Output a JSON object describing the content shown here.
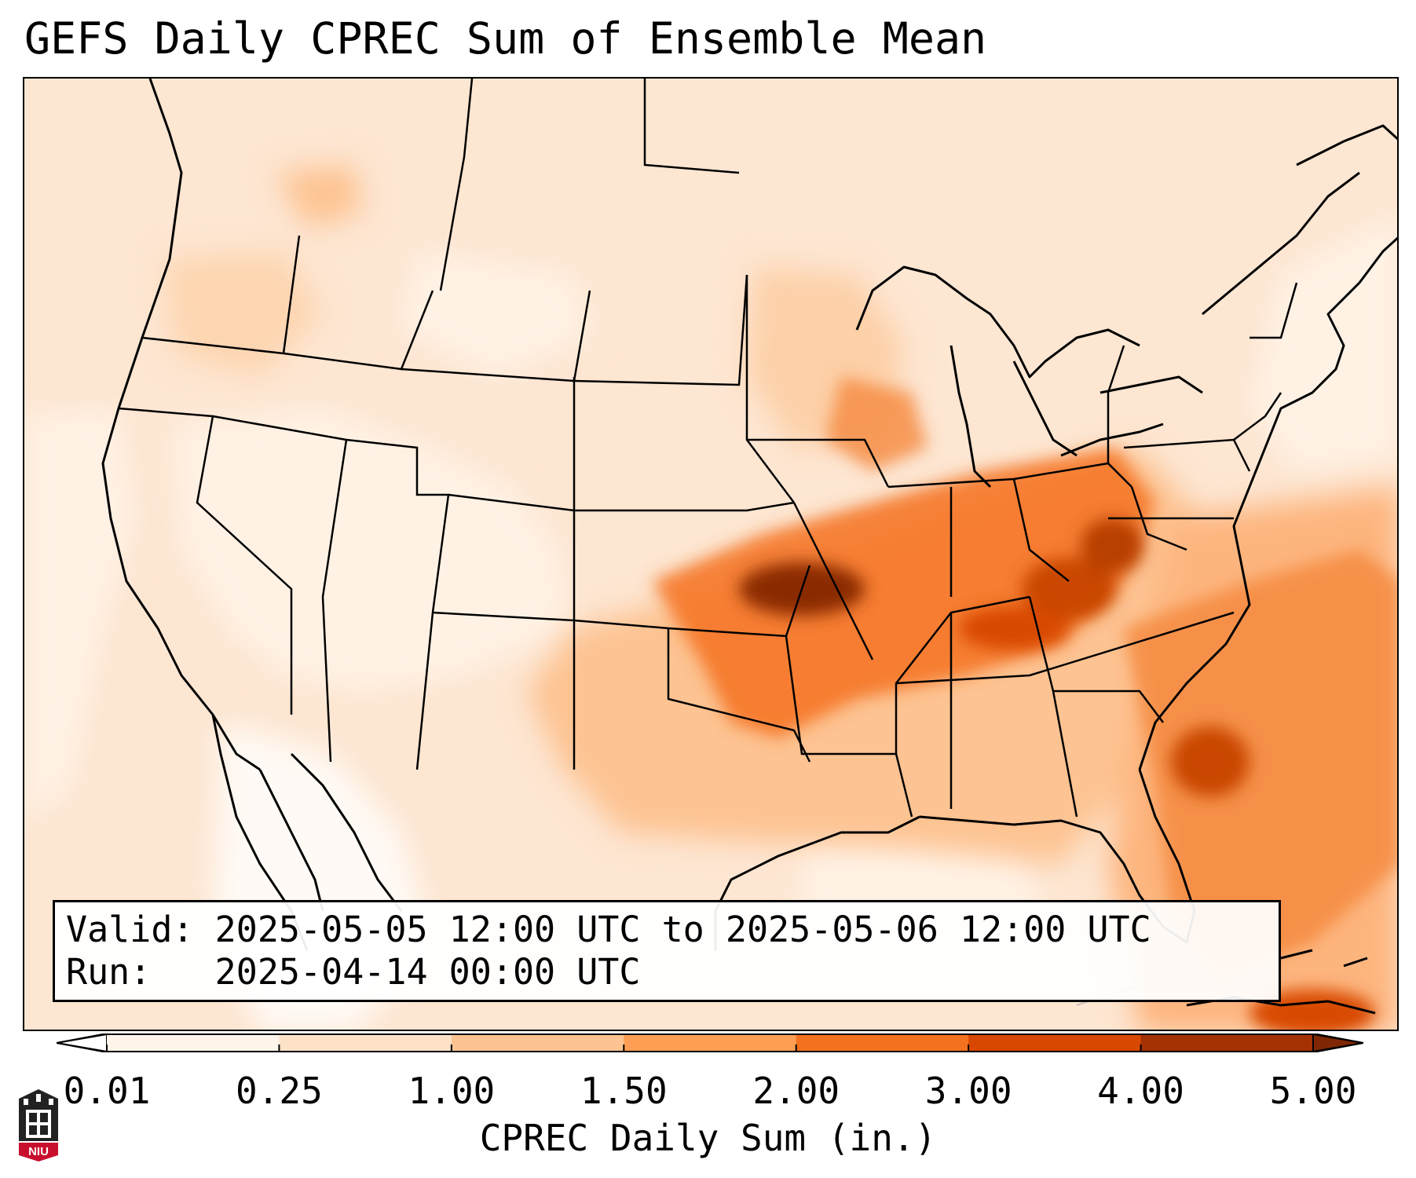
{
  "title": "GEFS Daily CPREC Sum of Ensemble Mean",
  "info": {
    "valid_line": "Valid: 2025-05-05 12:00 UTC to 2025-05-06 12:00 UTC",
    "run_line": "Run:   2025-04-14 00:00 UTC"
  },
  "colorbar": {
    "label": "CPREC Daily Sum (in.)",
    "ticks": [
      "0.01",
      "0.25",
      "1.00",
      "1.50",
      "2.00",
      "3.00",
      "4.00",
      "5.00"
    ],
    "colors": [
      "#fff5eb",
      "#fde2c8",
      "#fdc392",
      "#fd9e54",
      "#f4711f",
      "#d84801",
      "#a33103",
      "#7f2704"
    ],
    "under_color": "#ffffff",
    "over_color": "#7f2704"
  },
  "logo": {
    "text": "NIU",
    "icon": "university-tower-icon",
    "accent": "#c8102e"
  },
  "map": {
    "region": "Contiguous United States",
    "heaviest_area": "Missouri to Kentucky, Tennessee Valley and southeastern coast/Atlantic"
  }
}
